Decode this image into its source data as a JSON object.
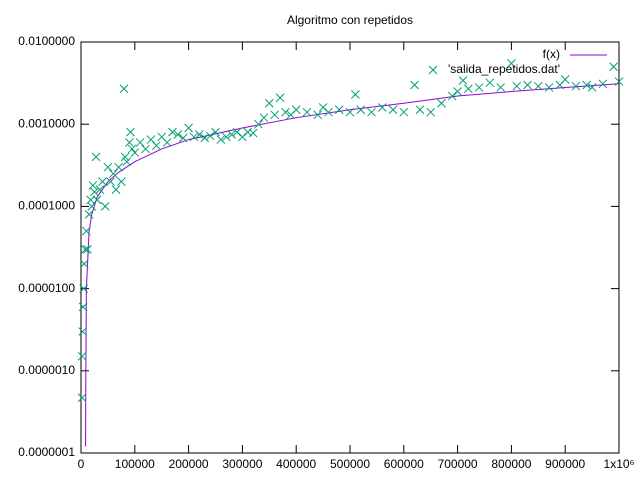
{
  "chart_data": {
    "type": "line",
    "title": "Algoritmo con repetidos",
    "log_y": true,
    "grid": false,
    "legend": "top-right",
    "xlim": [
      0,
      1000000
    ],
    "ylim": [
      1e-07,
      0.01
    ],
    "xticks": [
      0,
      100000,
      200000,
      300000,
      400000,
      500000,
      600000,
      700000,
      800000,
      900000,
      {
        "value": 1000000,
        "label": "1x10⁶"
      }
    ],
    "yticks": [
      {
        "value": 1e-07,
        "label": "0.0000001"
      },
      {
        "value": 1e-06,
        "label": "0.0000010"
      },
      {
        "value": 1e-05,
        "label": "0.0000100"
      },
      {
        "value": 0.0001,
        "label": "0.0001000"
      },
      {
        "value": 0.001,
        "label": "0.0010000"
      },
      {
        "value": 0.01,
        "label": "0.0100000"
      }
    ],
    "series": [
      {
        "name": "f(x)",
        "type": "line",
        "color": "#9400d3",
        "x": [
          8500,
          9000,
          10000,
          15000,
          20000,
          30000,
          50000,
          70000,
          100000,
          150000,
          200000,
          300000,
          400000,
          500000,
          600000,
          700000,
          800000,
          900000,
          1000000
        ],
        "values": [
          1.2e-07,
          1e-06,
          1e-05,
          5e-05,
          8e-05,
          0.00013,
          0.0002,
          0.00026,
          0.00035,
          0.0005,
          0.00065,
          0.0009,
          0.0012,
          0.0015,
          0.0018,
          0.0022,
          0.0025,
          0.0028,
          0.0031
        ]
      },
      {
        "name": "'salida_repetidos.dat'",
        "type": "scatter",
        "color": "#009e73",
        "x": [
          2000,
          2000,
          3000,
          4000,
          5000,
          6000,
          8000,
          10000,
          12000,
          15000,
          18000,
          20000,
          22000,
          25000,
          28000,
          30000,
          35000,
          40000,
          45000,
          50000,
          55000,
          60000,
          65000,
          70000,
          75000,
          80000,
          82000,
          85000,
          90000,
          92000,
          95000,
          100000,
          110000,
          120000,
          130000,
          140000,
          150000,
          160000,
          170000,
          180000,
          190000,
          200000,
          210000,
          220000,
          230000,
          240000,
          250000,
          260000,
          270000,
          280000,
          290000,
          300000,
          310000,
          320000,
          330000,
          340000,
          350000,
          360000,
          370000,
          380000,
          390000,
          400000,
          420000,
          440000,
          450000,
          460000,
          480000,
          500000,
          510000,
          520000,
          540000,
          560000,
          580000,
          600000,
          620000,
          630000,
          650000,
          670000,
          690000,
          700000,
          710000,
          720000,
          740000,
          760000,
          780000,
          800000,
          810000,
          830000,
          850000,
          870000,
          890000,
          900000,
          920000,
          940000,
          950000,
          970000,
          990000,
          1000000
        ],
        "values": [
          4.7e-07,
          1.5e-06,
          3e-06,
          6e-06,
          1e-05,
          2e-05,
          3e-05,
          5e-05,
          3e-05,
          8e-05,
          0.00012,
          0.0001,
          0.00018,
          0.00015,
          0.0004,
          0.00012,
          0.00016,
          0.0002,
          0.0001,
          0.0003,
          0.0002,
          0.00025,
          0.00016,
          0.0003,
          0.0002,
          0.0027,
          0.0004,
          0.00035,
          0.0006,
          0.0008,
          0.0005,
          0.00045,
          0.0006,
          0.0005,
          0.00065,
          0.00055,
          0.0007,
          0.0006,
          0.0008,
          0.00075,
          0.00068,
          0.0009,
          0.0007,
          0.00075,
          0.00068,
          0.00072,
          0.0008,
          0.00065,
          0.0007,
          0.00075,
          0.0008,
          0.0007,
          0.0008,
          0.00078,
          0.001,
          0.0012,
          0.0018,
          0.0013,
          0.0021,
          0.0014,
          0.0013,
          0.0015,
          0.0014,
          0.0013,
          0.0016,
          0.0014,
          0.0015,
          0.0014,
          0.0023,
          0.0015,
          0.0014,
          0.0016,
          0.0015,
          0.0014,
          0.003,
          0.0015,
          0.0014,
          0.0018,
          0.0022,
          0.0025,
          0.0034,
          0.0027,
          0.0028,
          0.0032,
          0.0028,
          0.0055,
          0.0029,
          0.003,
          0.0029,
          0.0028,
          0.003,
          0.0035,
          0.0029,
          0.003,
          0.0028,
          0.0031,
          0.005,
          0.0033
        ]
      }
    ]
  }
}
